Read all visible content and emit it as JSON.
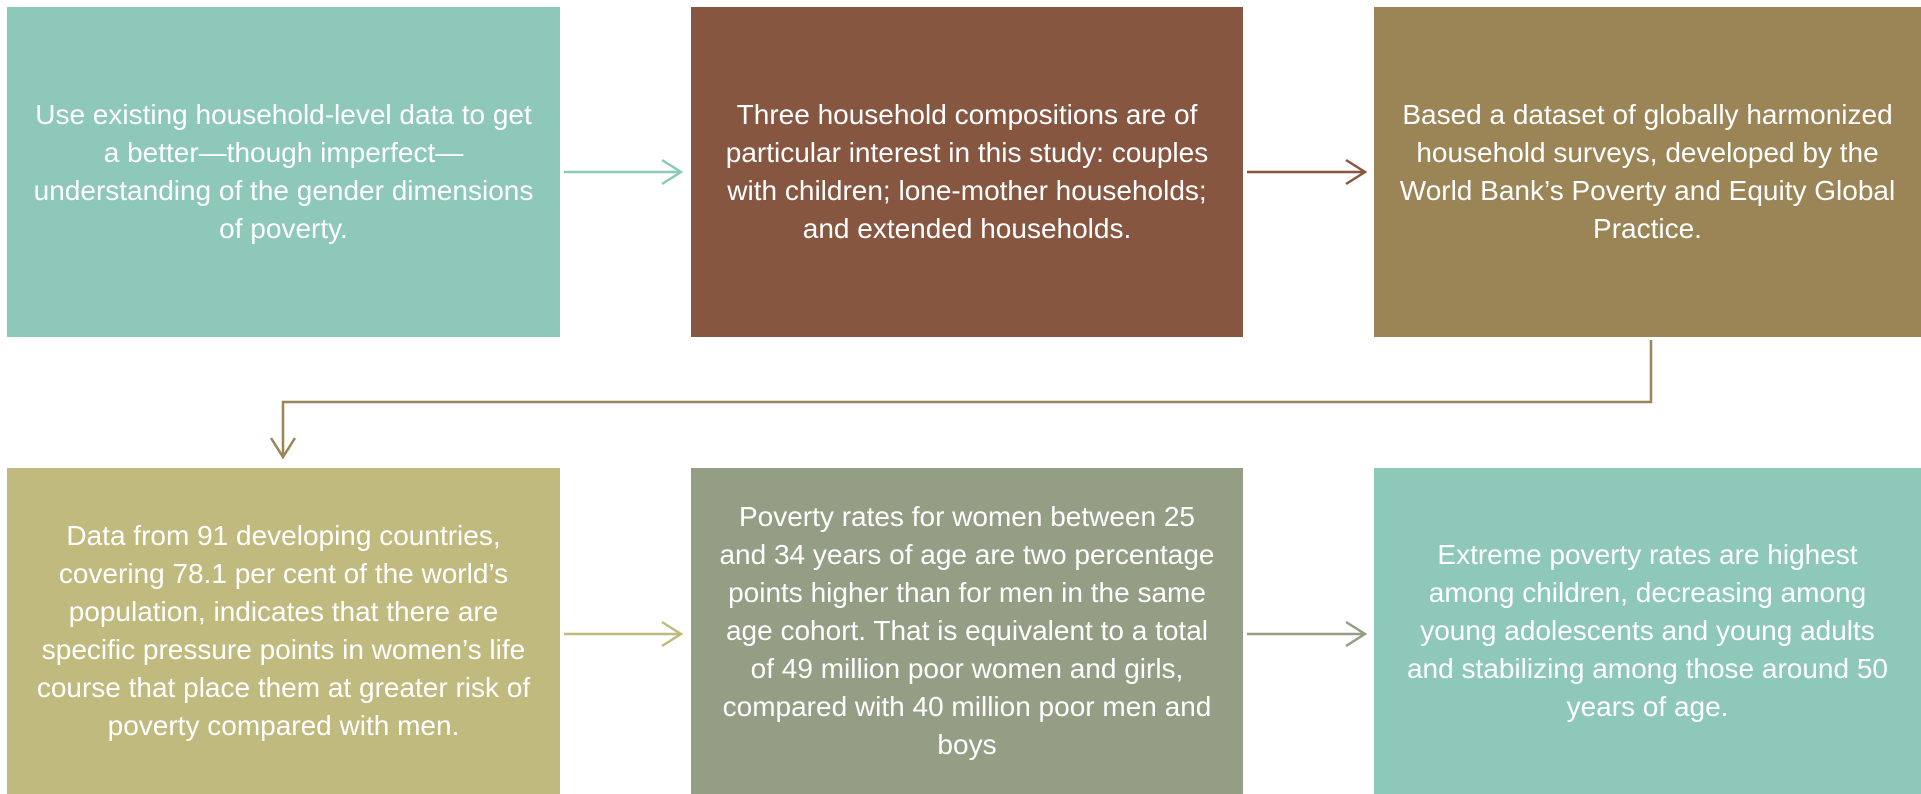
{
  "nodes": [
    {
      "label": "Use existing household-level data to get a better—though imperfect—understanding of the gender dimensions of poverty."
    },
    {
      "label": "Three household compositions are of particular interest in this study: couples with children; lone-mother households; and extended households."
    },
    {
      "label": "Based a dataset of globally harmonized household surveys, developed by the World Bank’s Poverty and Equity Global Practice."
    },
    {
      "label": "Data from 91 developing countries, covering 78.1 per cent of the world’s population, indicates that there are specific pressure points in women’s life course that place them at greater risk of poverty compared with men."
    },
    {
      "label": "Poverty rates for women between 25 and 34 years of age are two percentage points higher than for men in the same age cohort. That is equivalent to a total of 49 million poor women and girls, compared with 40 million poor men and boys"
    },
    {
      "label": "Extreme poverty rates are highest among children, decreasing among young adolescents and young adults and stabilizing among those around 50 years of age."
    }
  ]
}
